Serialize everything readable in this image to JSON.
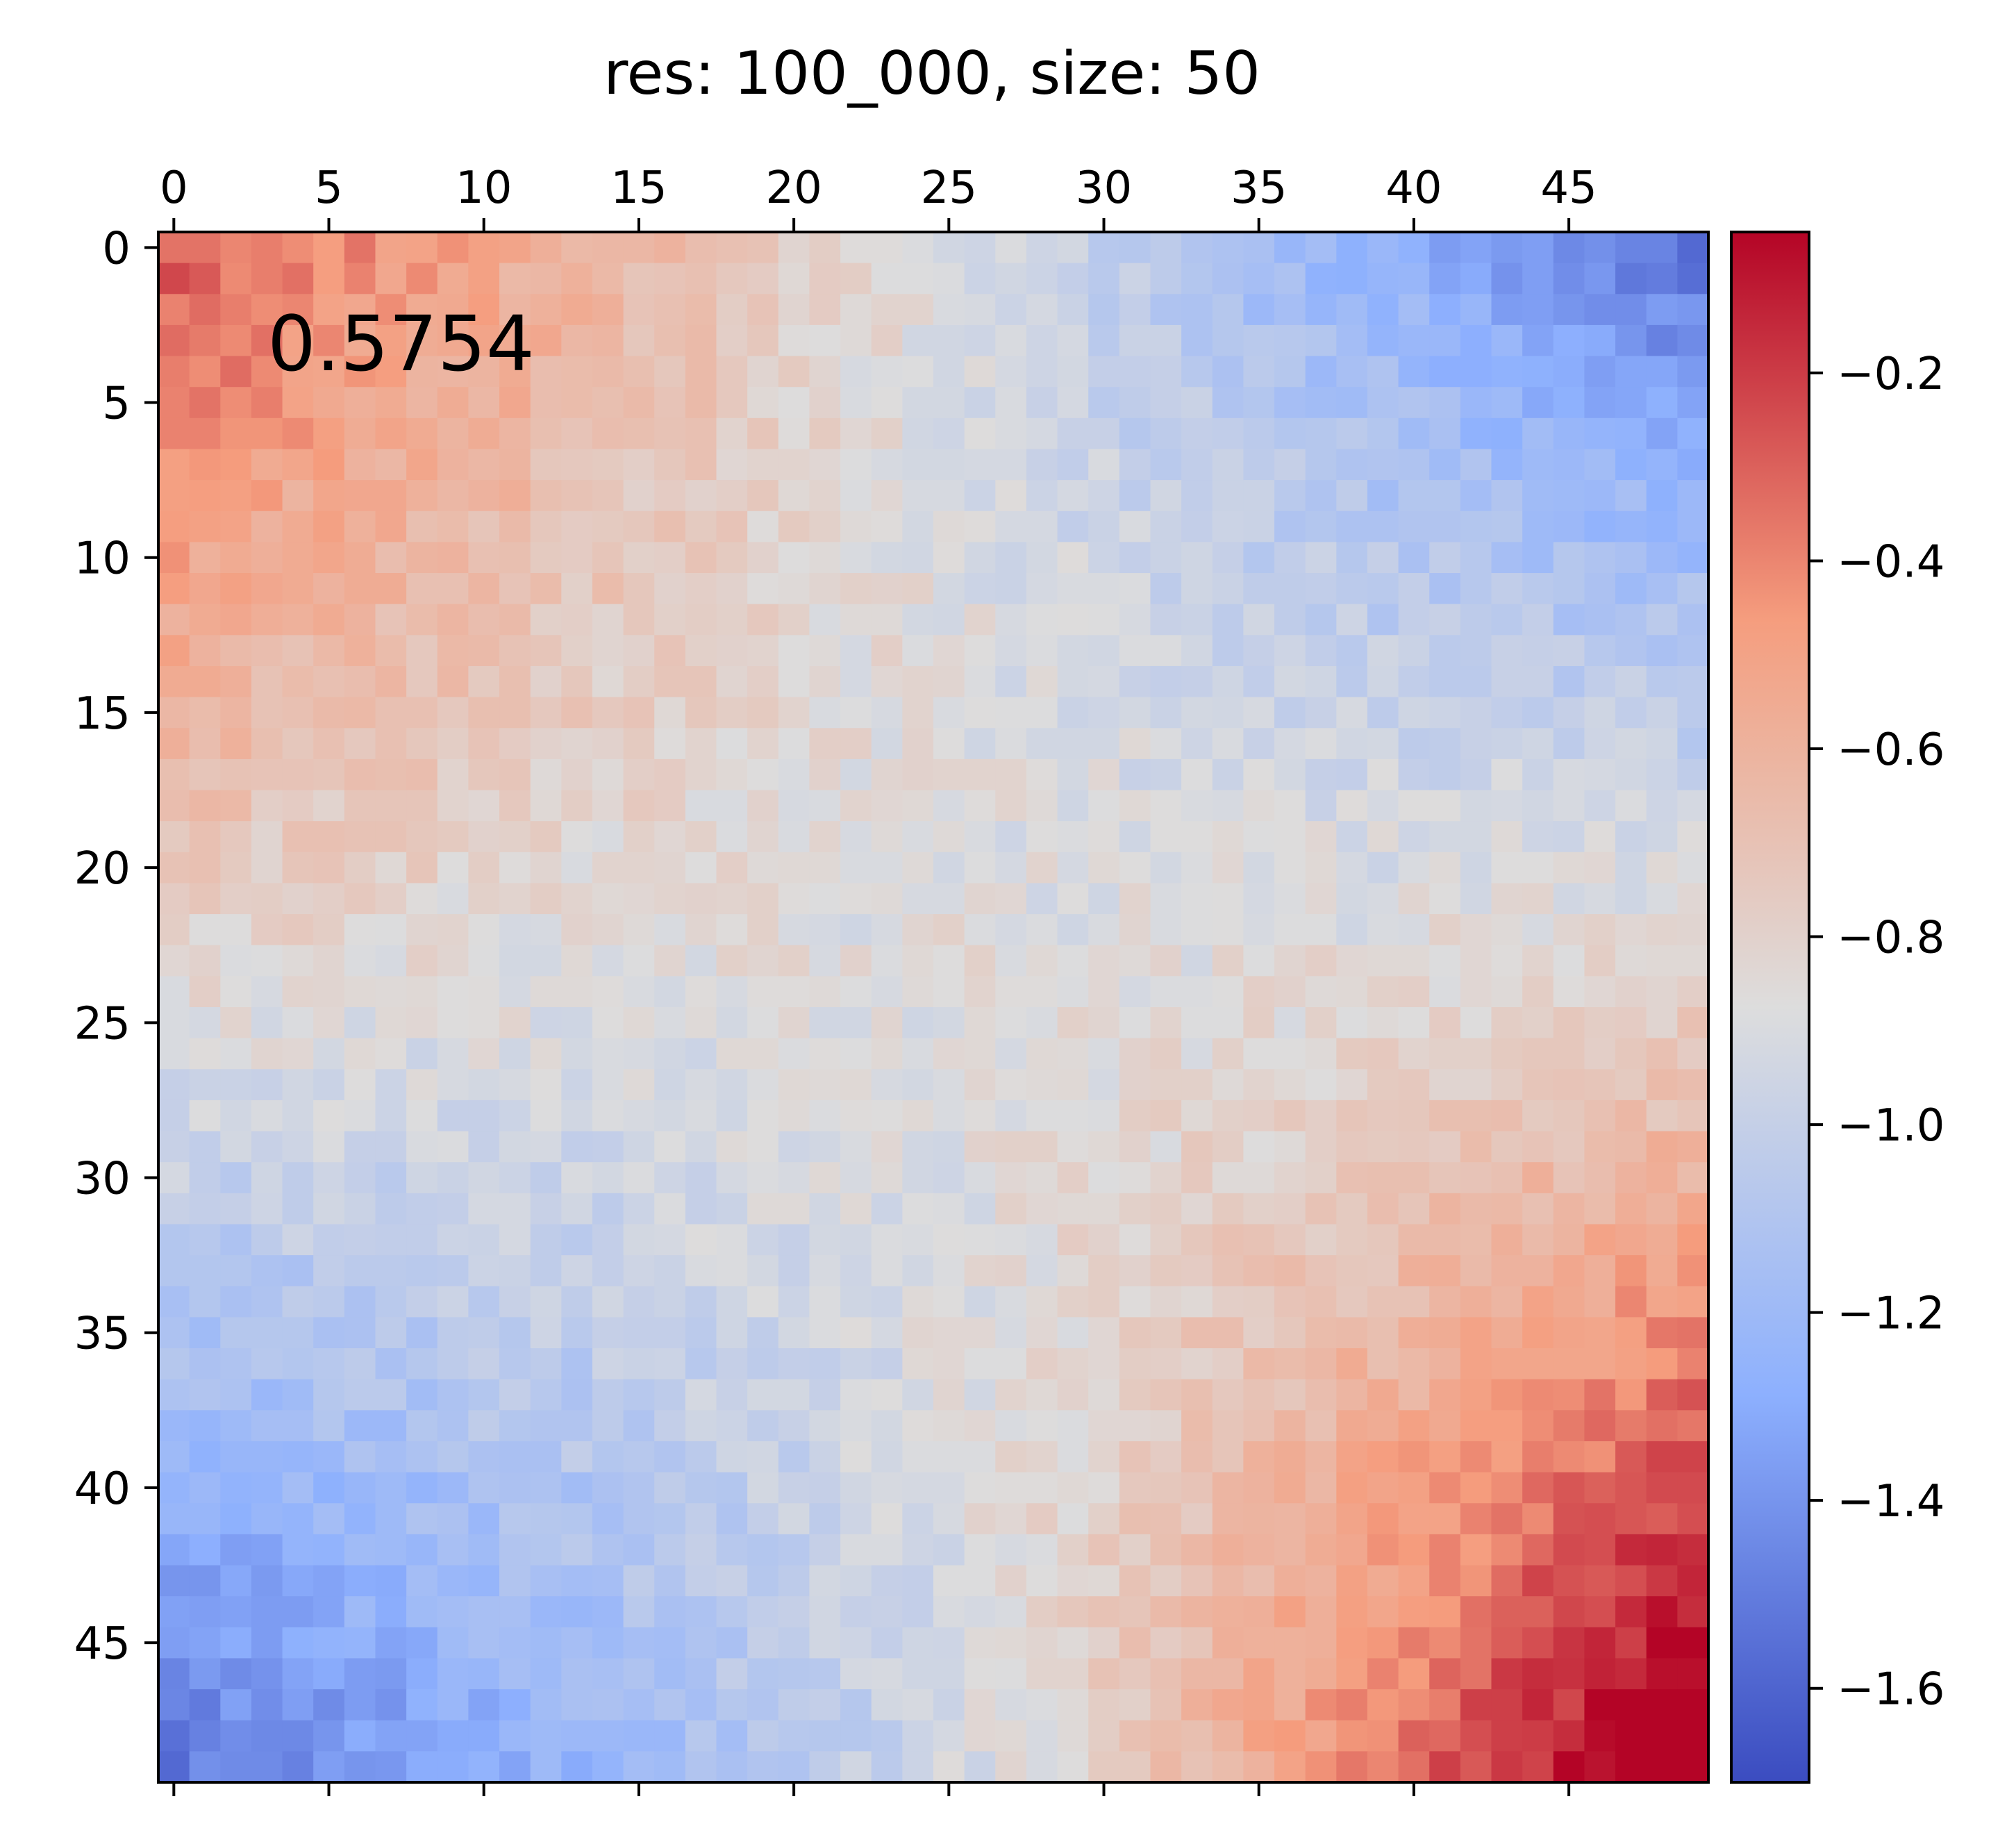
{
  "chart_data": {
    "type": "heatmap",
    "title": "res: 100_000, size: 50",
    "annotation": "0.5754",
    "xlabel": "",
    "ylabel": "",
    "rows": 50,
    "cols": 50,
    "x_ticks": [
      0,
      5,
      10,
      15,
      20,
      25,
      30,
      35,
      40,
      45
    ],
    "y_ticks": [
      0,
      5,
      10,
      15,
      20,
      25,
      30,
      35,
      40,
      45
    ],
    "x_axis_position": "top",
    "value_range": [
      -1.7,
      -0.05
    ],
    "colormap": "coolwarm",
    "colorbar": {
      "ticks": [
        -0.2,
        -0.4,
        -0.6,
        -0.8,
        -1.0,
        -1.2,
        -1.4,
        -1.6
      ],
      "labels": [
        "−0.2",
        "−0.4",
        "−0.6",
        "−0.8",
        "−1.0",
        "−1.2",
        "−1.4",
        "−1.6"
      ]
    },
    "max_cell": {
      "row": 47,
      "col": 47,
      "value": -0.05
    },
    "grid": false,
    "values": []
  }
}
